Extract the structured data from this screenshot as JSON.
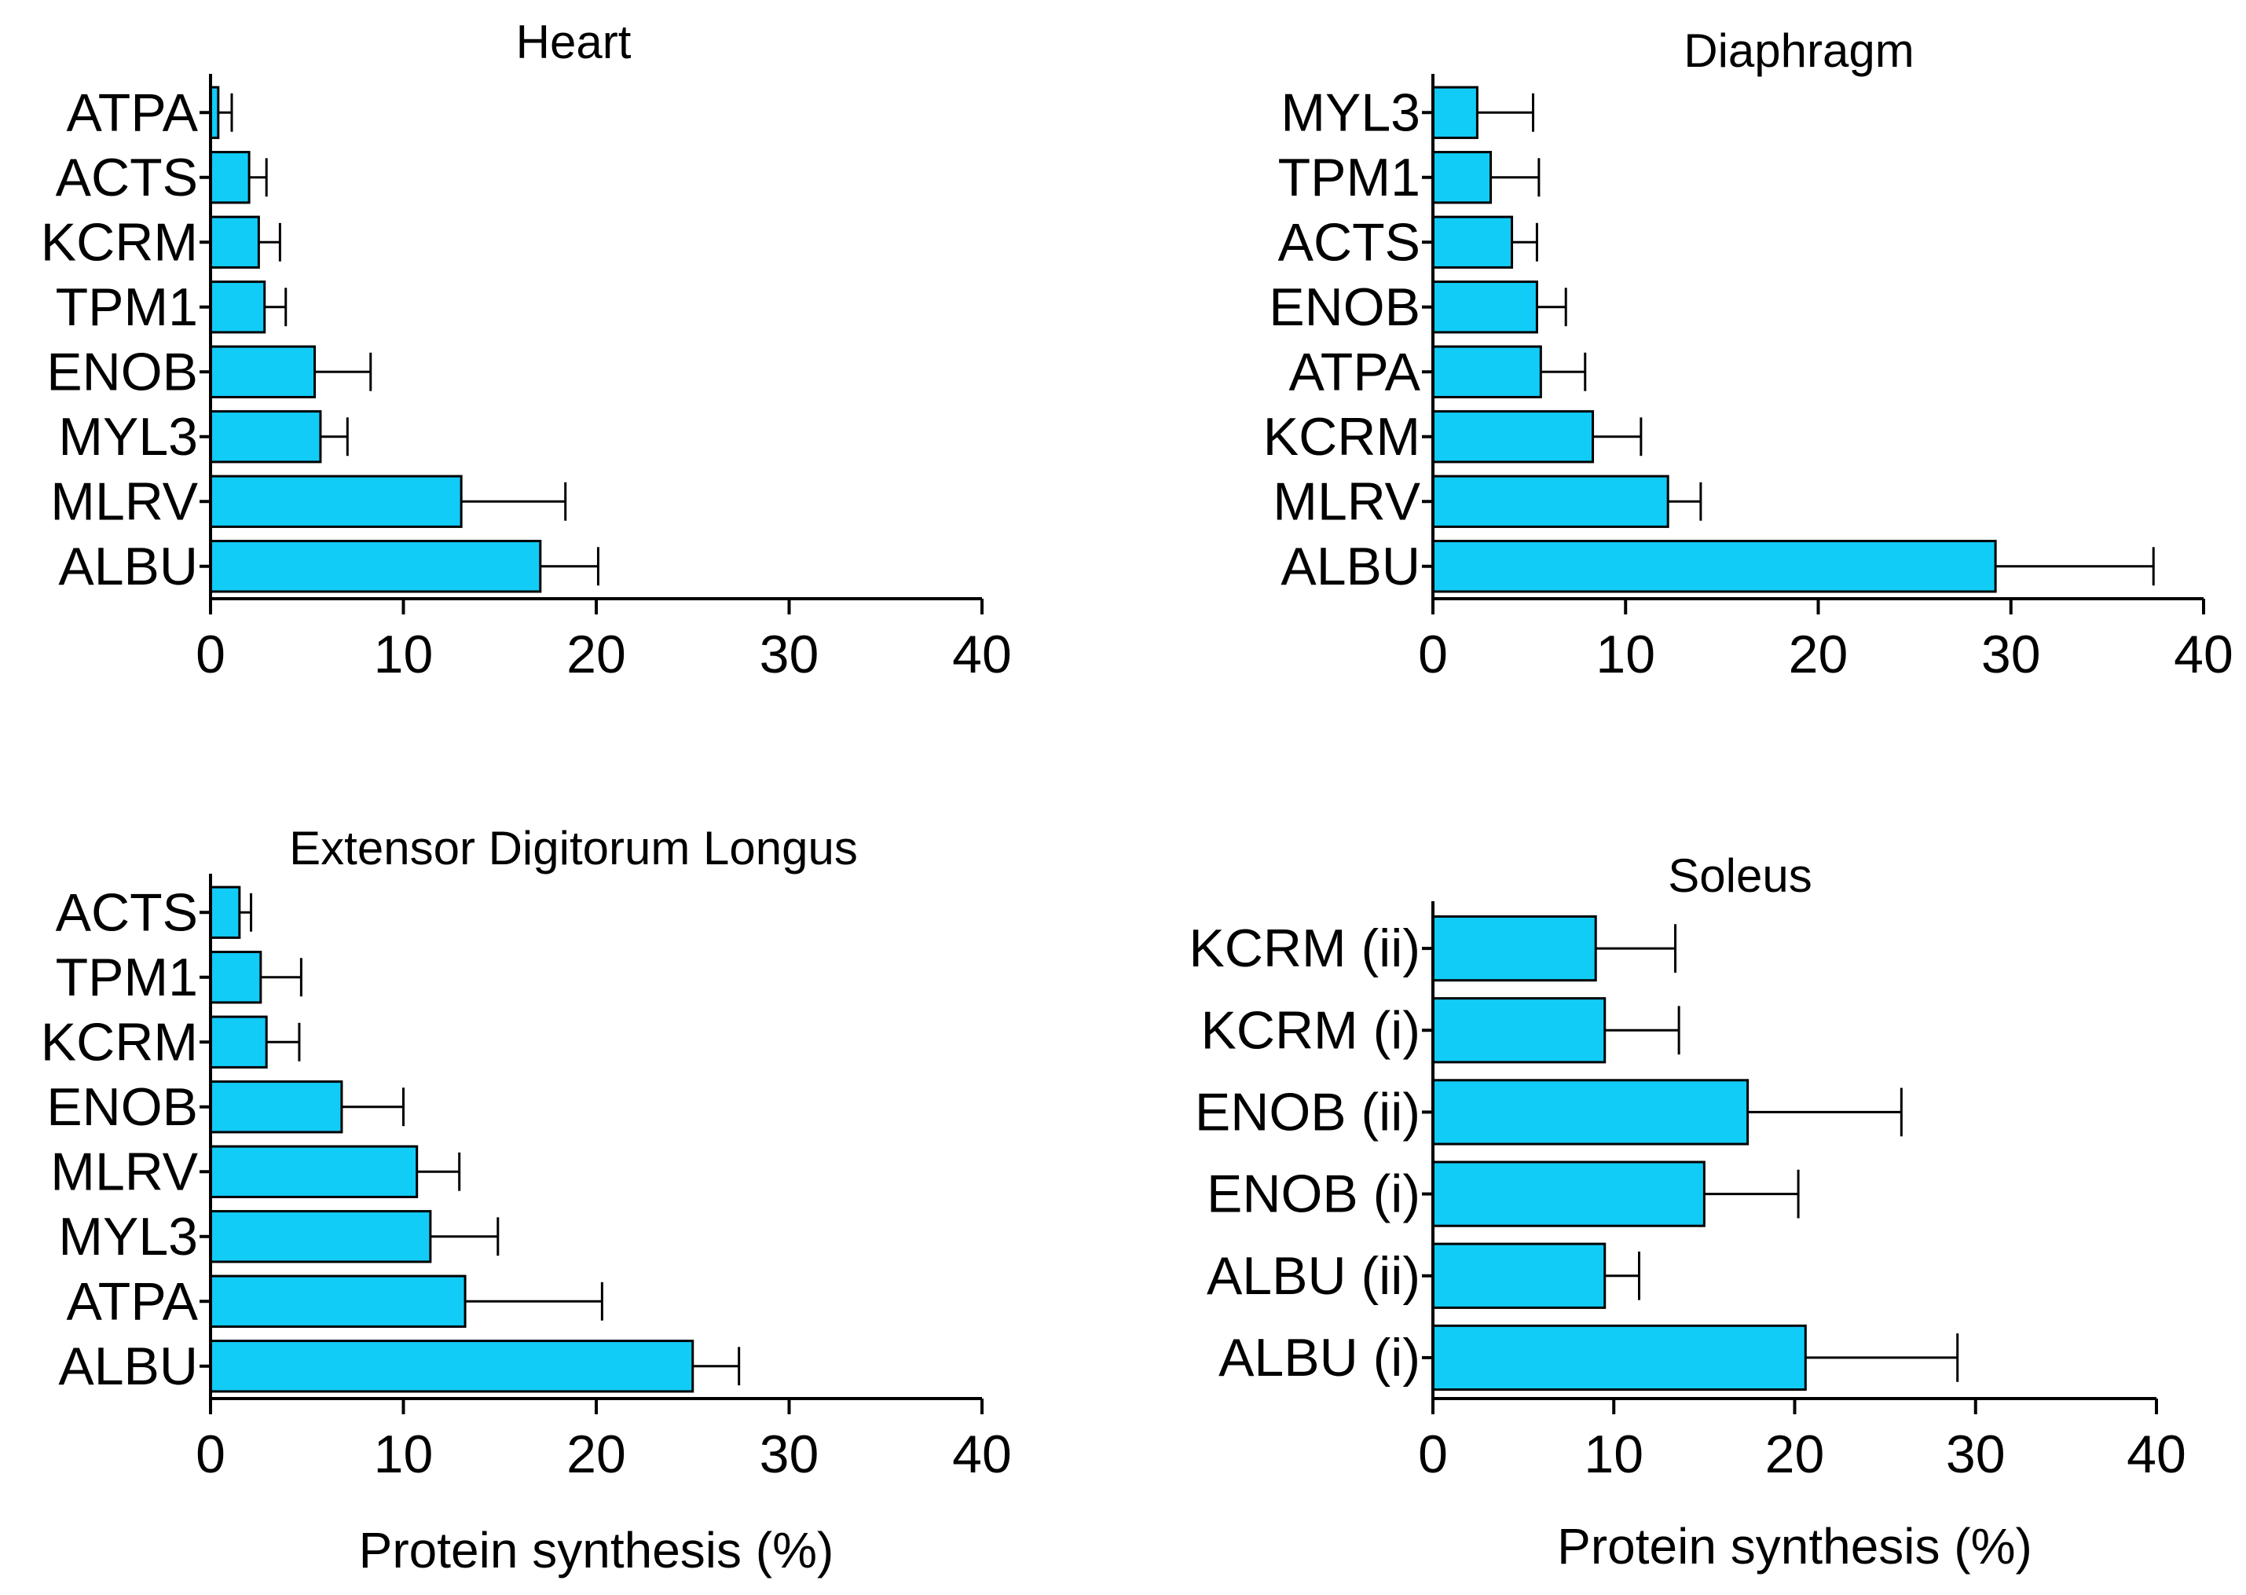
{
  "chart_data": [
    {
      "type": "bar",
      "orientation": "horizontal",
      "title": "Heart",
      "xlabel": "",
      "ylabel": "",
      "xlim": [
        0,
        40
      ],
      "xticks": [
        0,
        10,
        20,
        30,
        40
      ],
      "categories": [
        "ATPA",
        "ACTS",
        "KCRM",
        "TPM1",
        "ENOB",
        "MYL3",
        "MLRV",
        "ALBU"
      ],
      "values": [
        0.4,
        2.0,
        2.5,
        2.8,
        5.4,
        5.7,
        13.0,
        17.1
      ],
      "errors": [
        0.7,
        0.9,
        1.1,
        1.1,
        2.9,
        1.4,
        5.4,
        3.0
      ],
      "bar_color": "#11ccf7",
      "grid": false
    },
    {
      "type": "bar",
      "orientation": "horizontal",
      "title": "Diaphragm",
      "xlabel": "",
      "ylabel": "",
      "xlim": [
        0,
        40
      ],
      "xticks": [
        0,
        10,
        20,
        30,
        40
      ],
      "categories": [
        "MYL3",
        "TPM1",
        "ACTS",
        "ENOB",
        "ATPA",
        "KCRM",
        "MLRV",
        "ALBU"
      ],
      "values": [
        2.3,
        3.0,
        4.1,
        5.4,
        5.6,
        8.3,
        12.2,
        29.2
      ],
      "errors": [
        2.9,
        2.5,
        1.3,
        1.5,
        2.3,
        2.5,
        1.7,
        8.2
      ],
      "bar_color": "#11ccf7",
      "grid": false
    },
    {
      "type": "bar",
      "orientation": "horizontal",
      "title": "Extensor Digitorum Longus",
      "xlabel": "Protein synthesis (%)",
      "ylabel": "",
      "xlim": [
        0,
        40
      ],
      "xticks": [
        0,
        10,
        20,
        30,
        40
      ],
      "categories": [
        "ACTS",
        "TPM1",
        "KCRM",
        "ENOB",
        "MLRV",
        "MYL3",
        "ATPA",
        "ALBU"
      ],
      "values": [
        1.5,
        2.6,
        2.9,
        6.8,
        10.7,
        11.4,
        13.2,
        25.0
      ],
      "errors": [
        0.6,
        2.1,
        1.7,
        3.2,
        2.2,
        3.5,
        7.1,
        2.4
      ],
      "bar_color": "#11ccf7",
      "grid": false
    },
    {
      "type": "bar",
      "orientation": "horizontal",
      "title": "Soleus",
      "xlabel": "Protein synthesis (%)",
      "ylabel": "",
      "xlim": [
        0,
        40
      ],
      "xticks": [
        0,
        10,
        20,
        30,
        40
      ],
      "categories": [
        "KCRM (ii)",
        "KCRM (i)",
        "ENOB (ii)",
        "ENOB (i)",
        "ALBU (ii)",
        "ALBU (i)"
      ],
      "values": [
        9.0,
        9.5,
        17.4,
        15.0,
        9.5,
        20.6
      ],
      "errors": [
        4.4,
        4.1,
        8.5,
        5.2,
        1.9,
        8.4
      ],
      "bar_color": "#11ccf7",
      "grid": false
    }
  ]
}
